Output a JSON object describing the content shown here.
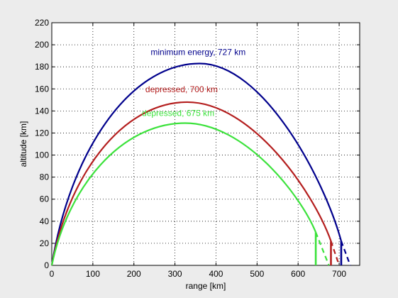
{
  "chart_data": {
    "type": "line",
    "xlabel": "range [km]",
    "ylabel": "altitude [km]",
    "xlim": [
      0,
      750
    ],
    "ylim": [
      0,
      220
    ],
    "xticks": [
      0,
      100,
      200,
      300,
      400,
      500,
      600,
      700
    ],
    "yticks": [
      0,
      20,
      40,
      60,
      80,
      100,
      120,
      140,
      160,
      180,
      200,
      220
    ],
    "grid": true,
    "series": [
      {
        "name": "minimum energy, 727 km",
        "color": "#00008c",
        "peak": [
          360,
          183
        ],
        "descent_start": [
          705,
          22
        ],
        "impact_solid": 705,
        "impact_dashed": 727
      },
      {
        "name": "depressed, 700 km",
        "color": "#b41e1e",
        "peak": [
          330,
          148
        ],
        "descent_start": [
          680,
          22
        ],
        "impact_solid": 680,
        "impact_dashed": 700
      },
      {
        "name": "depressed, 675 km",
        "color": "#3ce23c",
        "peak": [
          325,
          129
        ],
        "descent_start": [
          643,
          30
        ],
        "impact_solid": 643,
        "impact_dashed": 675
      }
    ]
  }
}
